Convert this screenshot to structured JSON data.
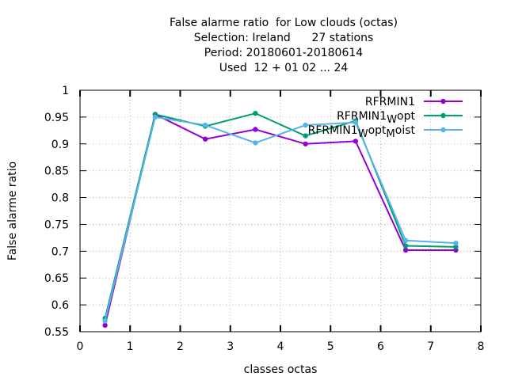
{
  "chart_data": {
    "type": "line",
    "title_lines": [
      "False alarme ratio  for Low clouds (octas)",
      "Selection: Ireland      27 stations",
      "Period: 20180601-20180614",
      "Used  12 + 01 02 ... 24"
    ],
    "xlabel": "classes octas",
    "ylabel": "False alarme ratio",
    "xlim": [
      0,
      8
    ],
    "ylim": [
      0.55,
      1
    ],
    "x_ticks": [
      "0",
      "1",
      "2",
      "3",
      "4",
      "5",
      "6",
      "7",
      "8"
    ],
    "y_ticks": [
      "0.55",
      "0.6",
      "0.65",
      "0.7",
      "0.75",
      "0.8",
      "0.85",
      "0.9",
      "0.95",
      "1"
    ],
    "grid": true,
    "legend_position": "top-right",
    "x": [
      0.5,
      1.5,
      2.5,
      3.5,
      4.5,
      5.5,
      6.5,
      7.5
    ],
    "series": [
      {
        "name": "RFRMIN1",
        "legend_parts": [
          [
            "RFRMIN1",
            ""
          ]
        ],
        "color": "#9400d3",
        "values": [
          0.562,
          0.955,
          0.909,
          0.927,
          0.9,
          0.905,
          0.702,
          0.702
        ]
      },
      {
        "name": "RFRMIN1_W opt",
        "legend_parts": [
          [
            "RFRMIN1",
            ""
          ],
          [
            "W",
            "sub"
          ],
          [
            "opt",
            ""
          ]
        ],
        "color": "#009e73",
        "values": [
          0.575,
          0.955,
          0.933,
          0.957,
          0.915,
          0.943,
          0.71,
          0.708
        ]
      },
      {
        "name": "RFRMIN1_W opt_M oist",
        "legend_parts": [
          [
            "RFRMIN1",
            ""
          ],
          [
            "W",
            "sub"
          ],
          [
            "opt",
            ""
          ],
          [
            "M",
            "sub"
          ],
          [
            "oist",
            ""
          ]
        ],
        "color": "#56b4e9",
        "values": [
          0.57,
          0.95,
          0.935,
          0.902,
          0.935,
          0.94,
          0.72,
          0.715
        ]
      }
    ]
  }
}
